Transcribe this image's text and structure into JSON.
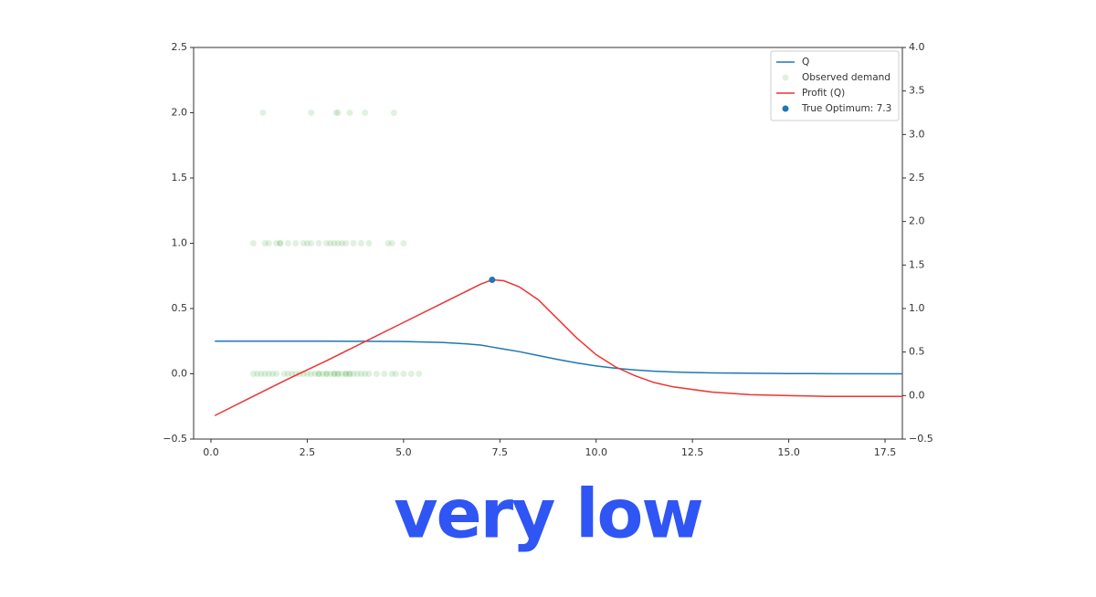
{
  "chart_data": {
    "type": "line",
    "x": [
      0.1,
      1,
      2,
      3,
      4,
      5,
      6,
      6.5,
      7,
      7.3,
      7.6,
      8,
      8.5,
      9,
      9.5,
      10,
      10.5,
      11,
      11.5,
      12,
      12.5,
      13,
      14,
      15,
      16,
      18
    ],
    "series": [
      {
        "name": "Q",
        "type": "line",
        "color": "#1f77b4",
        "values": [
          0.25,
          0.25,
          0.25,
          0.25,
          0.249,
          0.247,
          0.24,
          0.232,
          0.22,
          0.205,
          0.19,
          0.17,
          0.14,
          0.11,
          0.083,
          0.06,
          0.043,
          0.03,
          0.02,
          0.014,
          0.01,
          0.007,
          0.004,
          0.002,
          0.001,
          0.0
        ]
      },
      {
        "name": "Observed demand",
        "type": "scatter",
        "color": "#2ca02c",
        "alpha": 0.15,
        "x": [
          1.1,
          1.2,
          1.3,
          1.4,
          1.5,
          1.6,
          1.7,
          1.9,
          2.0,
          2.1,
          2.2,
          2.3,
          2.4,
          2.5,
          2.6,
          2.7,
          2.8,
          2.8,
          2.9,
          3.0,
          3.0,
          3.1,
          3.2,
          3.2,
          3.3,
          3.3,
          3.4,
          3.5,
          3.5,
          3.6,
          3.6,
          3.7,
          3.8,
          3.9,
          4.0,
          4.1,
          4.3,
          4.5,
          4.7,
          4.8,
          5.0,
          5.2,
          5.4,
          1.1,
          1.4,
          1.5,
          1.7,
          1.8,
          1.8,
          2.0,
          2.2,
          2.4,
          2.5,
          2.6,
          2.8,
          3.0,
          3.1,
          3.2,
          3.3,
          3.4,
          3.5,
          3.7,
          3.9,
          4.1,
          4.6,
          4.7,
          5.0,
          1.35,
          2.6,
          3.25,
          3.3,
          3.6,
          4.0,
          4.75
        ],
        "values": [
          0,
          0,
          0,
          0,
          0,
          0,
          0,
          0,
          0,
          0,
          0,
          0,
          0,
          0,
          0,
          0,
          0,
          0,
          0,
          0,
          0,
          0,
          0,
          0,
          0,
          0,
          0,
          0,
          0,
          0,
          0,
          0,
          0,
          0,
          0,
          0,
          0,
          0,
          0,
          0,
          0,
          0,
          0,
          1,
          1,
          1,
          1,
          1,
          1,
          1,
          1,
          1,
          1,
          1,
          1,
          1,
          1,
          1,
          1,
          1,
          1,
          1,
          1,
          1,
          1,
          1,
          1,
          2,
          2,
          2,
          2,
          2,
          2,
          2
        ]
      },
      {
        "name": "Profit (Q)",
        "type": "line",
        "axis": "y2",
        "color": "#ee3333",
        "values": [
          -0.23,
          -0.03,
          0.19,
          0.4,
          0.62,
          0.84,
          1.06,
          1.17,
          1.28,
          1.33,
          1.32,
          1.25,
          1.1,
          0.88,
          0.66,
          0.47,
          0.33,
          0.23,
          0.15,
          0.1,
          0.07,
          0.04,
          0.01,
          0.0,
          -0.01,
          -0.01
        ]
      },
      {
        "name": "True Optimum: 7.3",
        "type": "point",
        "color": "#1f77b4",
        "x": [
          7.3
        ],
        "values": [
          0.72
        ]
      }
    ],
    "xlim": [
      -0.45,
      17.95
    ],
    "xticks": [
      {
        "value": 0,
        "label": "0.0"
      },
      2.5,
      {
        "value": 5,
        "label": "5.0"
      },
      7.5,
      {
        "value": 10,
        "label": "10.0"
      },
      12.5,
      {
        "value": 15,
        "label": "15.0"
      },
      17.5
    ],
    "ylim": [
      -0.5,
      2.5
    ],
    "yticks": [
      {
        "value": -0.5,
        "label": "−0.5"
      },
      {
        "value": 0,
        "label": "0.0"
      },
      0.5,
      {
        "value": 1,
        "label": "1.0"
      },
      1.5,
      {
        "value": 2,
        "label": "2.0"
      },
      2.5
    ],
    "y2lim": [
      -0.5,
      4.0
    ],
    "y2ticks": [
      {
        "value": -0.5,
        "label": "−0.5"
      },
      {
        "value": 0,
        "label": "0.0"
      },
      0.5,
      {
        "value": 1,
        "label": "1.0"
      },
      1.5,
      {
        "value": 2,
        "label": "2.0"
      },
      2.5,
      {
        "value": 3,
        "label": "3.0"
      },
      3.5,
      {
        "value": 4,
        "label": "4.0"
      }
    ],
    "legend": "upper right"
  },
  "caption": "very low"
}
